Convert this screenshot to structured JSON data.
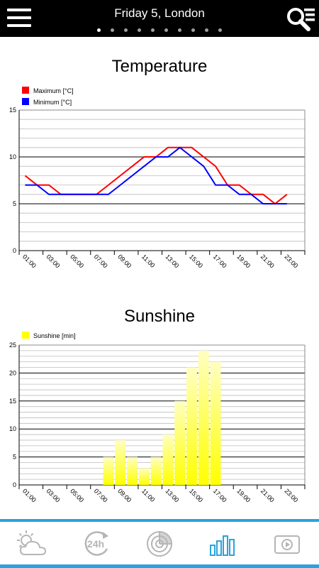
{
  "header": {
    "title": "Friday 5, London",
    "page_count": 10,
    "active_page": 1
  },
  "icons": {
    "menu": "hamburger-menu-icon",
    "search": "search-list-icon"
  },
  "charts": [
    {
      "heading": "Temperature",
      "chart_data": {
        "type": "line",
        "title": "Temperature",
        "x_ticks": [
          "01:00",
          "03:00",
          "05:00",
          "07:00",
          "09:00",
          "11:00",
          "13:00",
          "15:00",
          "17:00",
          "19:00",
          "21:00",
          "23:00"
        ],
        "x": [
          "01:00",
          "02:00",
          "03:00",
          "04:00",
          "05:00",
          "06:00",
          "07:00",
          "08:00",
          "09:00",
          "10:00",
          "11:00",
          "12:00",
          "13:00",
          "14:00",
          "15:00",
          "16:00",
          "17:00",
          "18:00",
          "19:00",
          "20:00",
          "21:00",
          "22:00",
          "23:00",
          "24:00"
        ],
        "ylim": [
          0,
          15
        ],
        "y_ticks": [
          0,
          5,
          10,
          15
        ],
        "legend_position": "top-left",
        "grid": true,
        "series": [
          {
            "name": "Maximum [°C]",
            "color": "#ff0000",
            "values": [
              8,
              7,
              7,
              6,
              6,
              6,
              6,
              7,
              8,
              9,
              10,
              10,
              11,
              11,
              11,
              10,
              9,
              7,
              7,
              6,
              6,
              5,
              6,
              null
            ]
          },
          {
            "name": "Minimum [°C]",
            "color": "#0000ff",
            "values": [
              7,
              7,
              6,
              6,
              6,
              6,
              6,
              6,
              7,
              8,
              9,
              10,
              10,
              11,
              10,
              9,
              7,
              7,
              6,
              6,
              5,
              5,
              5,
              null
            ]
          }
        ]
      }
    },
    {
      "heading": "Sunshine",
      "chart_data": {
        "type": "bar",
        "title": "Sunshine",
        "x_ticks": [
          "01:00",
          "03:00",
          "05:00",
          "07:00",
          "09:00",
          "11:00",
          "13:00",
          "15:00",
          "17:00",
          "19:00",
          "21:00",
          "23:00"
        ],
        "x": [
          "01:00",
          "02:00",
          "03:00",
          "04:00",
          "05:00",
          "06:00",
          "07:00",
          "08:00",
          "09:00",
          "10:00",
          "11:00",
          "12:00",
          "13:00",
          "14:00",
          "15:00",
          "16:00",
          "17:00",
          "18:00",
          "19:00",
          "20:00",
          "21:00",
          "22:00",
          "23:00",
          "24:00"
        ],
        "ylim": [
          0,
          25
        ],
        "y_ticks": [
          0,
          5,
          10,
          15,
          20,
          25
        ],
        "legend_position": "top-left",
        "grid": true,
        "series": [
          {
            "name": "Sunshine [min]",
            "color": "#ffff00",
            "values": [
              0,
              0,
              0,
              0,
              0,
              0,
              0,
              5,
              8,
              5,
              3,
              5,
              9,
              15,
              21,
              24,
              22,
              0,
              0,
              0,
              0,
              0,
              0,
              0
            ]
          }
        ]
      }
    }
  ],
  "tabs": [
    {
      "name": "tab-current-weather",
      "icon": "sun-cloud-icon"
    },
    {
      "name": "tab-24h",
      "icon": "24h-icon",
      "label": "24h"
    },
    {
      "name": "tab-radar",
      "icon": "radar-icon"
    },
    {
      "name": "tab-charts",
      "icon": "bar-chart-icon",
      "active": true
    },
    {
      "name": "tab-video",
      "icon": "video-play-icon"
    }
  ],
  "colors": {
    "accent": "#29a3dd",
    "inactive_icon": "#b5b5b5",
    "header_bg": "#000000"
  }
}
